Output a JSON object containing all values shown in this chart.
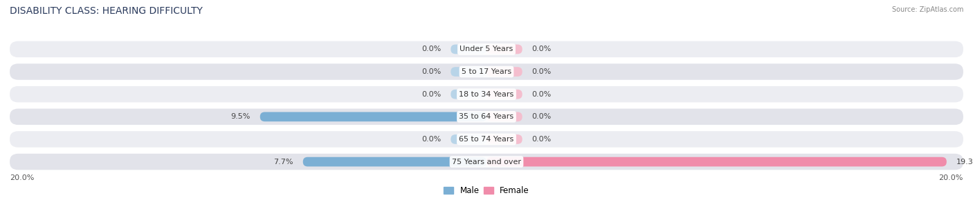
{
  "title": "DISABILITY CLASS: HEARING DIFFICULTY",
  "source": "Source: ZipAtlas.com",
  "categories": [
    "Under 5 Years",
    "5 to 17 Years",
    "18 to 34 Years",
    "35 to 64 Years",
    "65 to 74 Years",
    "75 Years and over"
  ],
  "male_values": [
    0.0,
    0.0,
    0.0,
    9.5,
    0.0,
    7.7
  ],
  "female_values": [
    0.0,
    0.0,
    0.0,
    0.0,
    0.0,
    19.3
  ],
  "male_color": "#7bafd4",
  "male_color_light": "#b8d4e8",
  "female_color": "#f08caa",
  "female_color_light": "#f4bece",
  "row_bg_color": "#e8e8ee",
  "max_val": 20.0,
  "axis_label_left": "20.0%",
  "axis_label_right": "20.0%",
  "title_fontsize": 10,
  "label_fontsize": 8,
  "background_color": "#ffffff"
}
